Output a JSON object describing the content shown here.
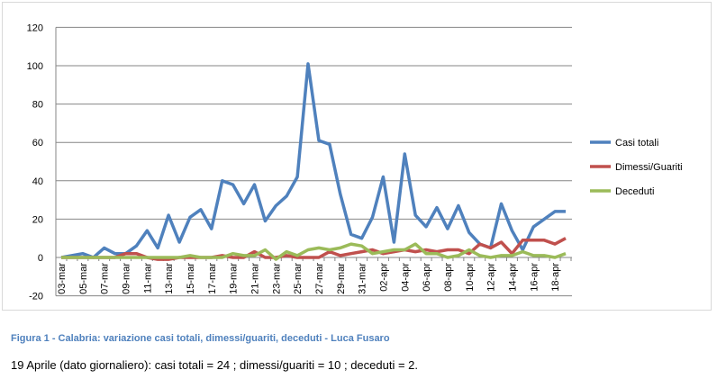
{
  "chart_data": {
    "type": "line",
    "title": "",
    "xlabel": "",
    "ylabel": "",
    "ylim": [
      -20,
      120
    ],
    "yticks": [
      -20,
      0,
      20,
      40,
      60,
      80,
      100,
      120
    ],
    "grid": true,
    "legend": "right",
    "x": [
      "03-mar",
      "04-mar",
      "05-mar",
      "06-mar",
      "07-mar",
      "08-mar",
      "09-mar",
      "10-mar",
      "11-mar",
      "12-mar",
      "13-mar",
      "14-mar",
      "15-mar",
      "16-mar",
      "17-mar",
      "18-mar",
      "19-mar",
      "20-mar",
      "21-mar",
      "22-mar",
      "23-mar",
      "24-mar",
      "25-mar",
      "26-mar",
      "27-mar",
      "28-mar",
      "29-mar",
      "30-mar",
      "31-mar",
      "01-apr",
      "02-apr",
      "03-apr",
      "04-apr",
      "05-apr",
      "06-apr",
      "07-apr",
      "08-apr",
      "09-apr",
      "10-apr",
      "11-apr",
      "12-apr",
      "13-apr",
      "14-apr",
      "15-apr",
      "16-apr",
      "17-apr",
      "18-apr",
      "19-apr"
    ],
    "series": [
      {
        "name": "Casi totali",
        "color": "#4f81bd",
        "values": [
          0,
          1,
          2,
          0,
          5,
          2,
          2,
          6,
          14,
          5,
          22,
          8,
          21,
          25,
          15,
          40,
          38,
          28,
          38,
          19,
          27,
          32,
          42,
          101,
          61,
          59,
          33,
          12,
          10,
          21,
          42,
          8,
          54,
          22,
          16,
          26,
          15,
          27,
          13,
          7,
          5,
          28,
          14,
          4,
          16,
          20,
          24,
          24
        ]
      },
      {
        "name": "Dimessi/Guariti",
        "color": "#c0504d",
        "values": [
          0,
          0,
          0,
          0,
          0,
          0,
          2,
          2,
          0,
          -1,
          -1,
          0,
          0,
          0,
          0,
          1,
          0,
          0,
          3,
          0,
          0,
          1,
          0,
          0,
          0,
          3,
          1,
          2,
          3,
          4,
          2,
          3,
          4,
          3,
          4,
          3,
          4,
          4,
          2,
          7,
          5,
          8,
          2,
          9,
          9,
          9,
          7,
          10
        ]
      },
      {
        "name": "Deceduti",
        "color": "#9bbb59",
        "values": [
          0,
          0,
          0,
          0,
          0,
          0,
          0,
          0,
          0,
          0,
          0,
          0,
          1,
          0,
          0,
          0,
          2,
          1,
          1,
          4,
          -1,
          3,
          1,
          4,
          5,
          4,
          5,
          7,
          6,
          2,
          3,
          4,
          4,
          7,
          2,
          2,
          0,
          1,
          4,
          1,
          0,
          1,
          1,
          3,
          1,
          1,
          0,
          2
        ]
      }
    ]
  },
  "caption": "Figura 1 - Calabria:  variazione  casi  totali, dimessi/guariti, deceduti - Luca Fusaro",
  "note": "19 Aprile (dato giornaliero): casi totali = 24  ; dimessi/guariti = 10  ; deceduti = 2."
}
